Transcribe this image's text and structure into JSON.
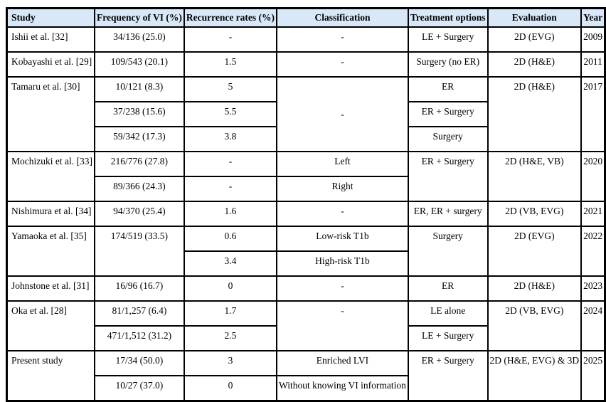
{
  "header": {
    "study": "Study",
    "frequency": "Frequency of VI (%)",
    "recurrence": "Recurrence rates (%)",
    "classification": "Classification",
    "treatment": "Treatment options",
    "evaluation": "Evaluation",
    "year": "Year"
  },
  "groups": {
    "ishii": {
      "study": "Ishii et al. [32]",
      "frequency": "34/136 (25.0)",
      "recurrence": "-",
      "classification": "-",
      "treatment": "LE + Surgery",
      "evaluation": "2D (EVG)",
      "year": "2009"
    },
    "kobayashi": {
      "study": "Kobayashi et al. [29]",
      "frequency": "109/543 (20.1)",
      "recurrence": "1.5",
      "classification": "-",
      "treatment": "Surgery (no ER)",
      "evaluation": "2D (H&E)",
      "year": "2011"
    },
    "tamaru": {
      "study": "Tamaru et al. [30]",
      "classification": "-",
      "evaluation": "2D (H&E)",
      "year": "2017",
      "rows": [
        {
          "frequency": "10/121 (8.3)",
          "recurrence": "5",
          "treatment": "ER"
        },
        {
          "frequency": "37/238 (15.6)",
          "recurrence": "5.5",
          "treatment": "ER + Surgery"
        },
        {
          "frequency": "59/342 (17.3)",
          "recurrence": "3.8",
          "treatment": "Surgery"
        }
      ]
    },
    "mochizuki": {
      "study": "Mochizuki et al. [33]",
      "treatment": "ER + Surgery",
      "evaluation": "2D (H&E, VB)",
      "year": "2020",
      "rows": [
        {
          "frequency": "216/776 (27.8)",
          "recurrence": "-",
          "classification": "Left"
        },
        {
          "frequency": "89/366 (24.3)",
          "recurrence": "-",
          "classification": "Right"
        }
      ]
    },
    "nishimura": {
      "study": "Nishimura et al. [34]",
      "frequency": "94/370 (25.4)",
      "recurrence": "1.6",
      "classification": "-",
      "treatment": "ER, ER + surgery",
      "evaluation": "2D (VB, EVG)",
      "year": "2021"
    },
    "yamaoka": {
      "study": "Yamaoka et al. [35]",
      "frequency": "174/519 (33.5)",
      "treatment": "Surgery",
      "evaluation": "2D (EVG)",
      "year": "2022",
      "rows": [
        {
          "recurrence": "0.6",
          "classification": "Low-risk T1b"
        },
        {
          "recurrence": "3.4",
          "classification": "High-risk T1b"
        }
      ]
    },
    "johnstone": {
      "study": "Johnstone et al. [31]",
      "frequency": "16/96 (16.7)",
      "recurrence": "0",
      "classification": "-",
      "treatment": "ER",
      "evaluation": "2D (H&E)",
      "year": "2023"
    },
    "oka": {
      "study": "Oka et al. [28]",
      "classification": "-",
      "evaluation": "2D (VB, EVG)",
      "year": "2024",
      "rows": [
        {
          "frequency": "81/1,257 (6.4)",
          "recurrence": "1.7",
          "treatment": "LE alone"
        },
        {
          "frequency": "471/1,512 (31.2)",
          "recurrence": "2.5",
          "treatment": "LE + Surgery"
        }
      ]
    },
    "present": {
      "study": "Present study",
      "treatment": "ER + Surgery",
      "evaluation": "2D (H&E, EVG) & 3D",
      "year": "2025",
      "rows": [
        {
          "frequency": "17/34 (50.0)",
          "recurrence": "3",
          "classification": "Enriched LVI"
        },
        {
          "frequency": "10/27 (37.0)",
          "recurrence": "0",
          "classification": "Without knowing VI information"
        }
      ]
    }
  },
  "colors": {
    "header_bg": "#D8E8F8",
    "border": "#000000"
  }
}
